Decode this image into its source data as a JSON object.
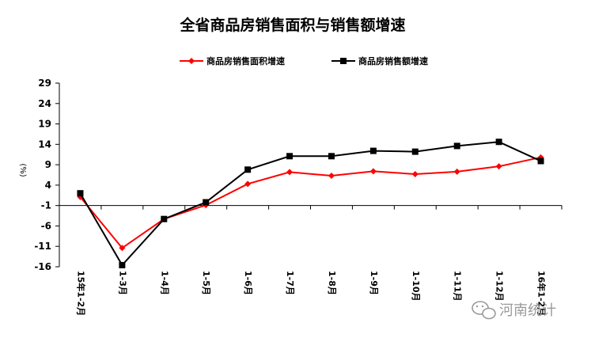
{
  "chart_data": {
    "type": "line",
    "title": "全省商品房销售面积与销售额增速",
    "ylabel": "(%)",
    "ylim": [
      -16,
      29
    ],
    "yticks": [
      29,
      24,
      19,
      14,
      9,
      4,
      -1,
      -6,
      -11,
      -16
    ],
    "categories": [
      "15年1-2月",
      "1-3月",
      "1-4月",
      "1-5月",
      "1-6月",
      "1-7月",
      "1-8月",
      "1-9月",
      "1-10月",
      "1-11月",
      "1-12月",
      "16年1-2月"
    ],
    "series": [
      {
        "name": "商品房销售面积增速",
        "color": "#ff0000",
        "marker": "diamond",
        "values": [
          1.1,
          -11.4,
          -4.3,
          -0.9,
          4.3,
          7.2,
          6.3,
          7.4,
          6.7,
          7.3,
          8.6,
          10.8
        ]
      },
      {
        "name": "商品房销售额增速",
        "color": "#000000",
        "marker": "square",
        "values": [
          2.0,
          -15.6,
          -4.3,
          -0.2,
          7.8,
          11.1,
          11.1,
          12.4,
          12.2,
          13.6,
          14.6,
          9.9
        ]
      }
    ],
    "legend_position": "top",
    "grid": false
  },
  "watermark": "河南统计"
}
